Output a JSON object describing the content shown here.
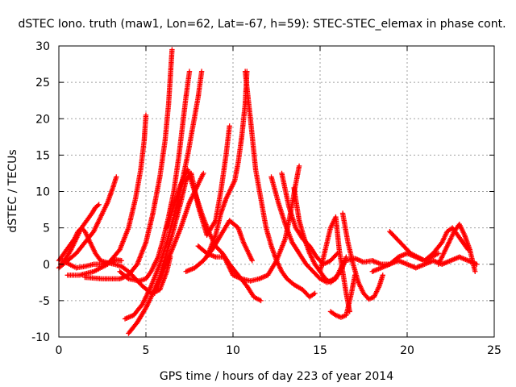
{
  "chart_data": {
    "type": "scatter",
    "title": "dSTEC Iono. truth (maw1, Lon=62, Lat=-67, h=59): STEC-STEC_elemax in phase cont.",
    "xlabel": "GPS time / hours of day 223 of year 2014",
    "ylabel": "dSTEC  / TECUs",
    "xlim": [
      0,
      25
    ],
    "ylim": [
      -10,
      30
    ],
    "xticks": [
      0,
      5,
      10,
      15,
      20,
      25
    ],
    "yticks": [
      -10,
      -5,
      0,
      5,
      10,
      15,
      20,
      25,
      30
    ],
    "grid": true,
    "marker": "plus",
    "color": "#ff0000",
    "series": [
      {
        "x": [
          0.0,
          0.3,
          0.6,
          0.9,
          1.1,
          1.3,
          1.5,
          1.8,
          2.1,
          2.4,
          2.8,
          3.2,
          3.6,
          4.0,
          4.4,
          4.8,
          5.3,
          5.8,
          6.2,
          6.4
        ],
        "y": [
          0.5,
          1.5,
          2.5,
          3.5,
          4.5,
          5.0,
          4.5,
          3.0,
          1.5,
          0.5,
          0.2,
          0.0,
          -0.3,
          -1.0,
          -2.0,
          -3.0,
          -4.0,
          -3.5,
          -1.0,
          1.0
        ]
      },
      {
        "x": [
          0.1,
          0.4,
          0.7,
          1.0,
          1.3,
          1.6,
          1.9,
          2.1,
          2.3
        ],
        "y": [
          0.0,
          0.8,
          2.0,
          3.5,
          5.0,
          6.0,
          7.0,
          7.8,
          8.2
        ]
      },
      {
        "x": [
          0.0,
          0.5,
          1.0,
          1.5,
          2.0,
          2.4,
          2.8,
          3.1,
          3.3
        ],
        "y": [
          -0.5,
          0.5,
          1.5,
          3.0,
          4.5,
          6.5,
          8.5,
          10.5,
          12.0
        ]
      },
      {
        "x": [
          0.5,
          1.2,
          2.0,
          2.8,
          3.5,
          4.0,
          4.4,
          4.7,
          4.9,
          5.0
        ],
        "y": [
          -1.5,
          -1.5,
          -1.0,
          0.0,
          2.0,
          5.0,
          9.0,
          13.0,
          17.0,
          20.5
        ]
      },
      {
        "x": [
          0.2,
          0.6,
          1.0,
          1.5,
          2.0,
          2.5,
          3.0,
          3.3,
          3.6
        ],
        "y": [
          0.5,
          0.0,
          -0.5,
          -0.3,
          0.0,
          0.0,
          0.3,
          0.6,
          0.5
        ]
      },
      {
        "x": [
          1.5,
          2.5,
          3.5,
          4.0,
          4.5,
          5.0,
          5.4,
          5.8,
          6.1,
          6.3,
          6.5
        ],
        "y": [
          -1.8,
          -2.0,
          -2.0,
          -1.5,
          0.0,
          3.0,
          7.0,
          12.0,
          17.0,
          22.0,
          29.5
        ]
      },
      {
        "x": [
          3.5,
          4.0,
          4.6,
          5.0,
          5.3,
          5.7,
          6.0,
          6.3,
          6.6,
          6.9,
          7.1,
          7.3,
          7.5
        ],
        "y": [
          -1.0,
          -2.0,
          -2.3,
          -2.0,
          -1.0,
          1.0,
          3.5,
          6.5,
          10.0,
          15.0,
          19.0,
          23.0,
          26.5
        ]
      },
      {
        "x": [
          3.8,
          4.3,
          4.8,
          5.3,
          5.8,
          6.2,
          6.6,
          7.0,
          7.4,
          7.7,
          8.0,
          8.2
        ],
        "y": [
          -7.5,
          -7.0,
          -5.5,
          -3.0,
          0.0,
          3.0,
          6.5,
          10.5,
          15.0,
          19.0,
          23.0,
          26.5
        ]
      },
      {
        "x": [
          4.0,
          4.5,
          5.0,
          5.5,
          6.0,
          6.5,
          7.0,
          7.5,
          8.0,
          8.3
        ],
        "y": [
          -9.5,
          -8.0,
          -6.0,
          -3.5,
          -1.0,
          2.0,
          5.0,
          8.5,
          11.0,
          12.5
        ]
      },
      {
        "x": [
          5.5,
          6.0,
          6.5,
          7.0,
          7.3,
          7.6,
          8.0,
          8.5,
          9.0,
          9.3,
          9.6,
          9.8
        ],
        "y": [
          -4.0,
          0.0,
          4.0,
          8.5,
          11.5,
          12.5,
          8.0,
          4.0,
          6.0,
          10.0,
          15.0,
          19.0
        ]
      },
      {
        "x": [
          6.2,
          6.6,
          7.0,
          7.4,
          7.8,
          8.2,
          8.6,
          9.0,
          9.4,
          9.8,
          10.3,
          10.8,
          11.2,
          11.6
        ],
        "y": [
          5.0,
          8.0,
          11.0,
          13.0,
          10.0,
          7.0,
          4.5,
          2.5,
          1.5,
          0.0,
          -1.5,
          -3.0,
          -4.5,
          -5.0
        ]
      },
      {
        "x": [
          7.3,
          7.8,
          8.3,
          8.8,
          9.3,
          9.8,
          10.3,
          10.6,
          10.9,
          11.1
        ],
        "y": [
          -1.0,
          -0.5,
          0.5,
          2.0,
          4.0,
          6.0,
          5.0,
          3.0,
          1.5,
          0.5
        ]
      },
      {
        "x": [
          8.0,
          8.5,
          9.0,
          9.5,
          10.0,
          10.5,
          11.0,
          11.5,
          12.0,
          12.5,
          13.0,
          13.3,
          13.6,
          13.8
        ],
        "y": [
          2.5,
          1.5,
          1.0,
          1.0,
          -1.5,
          -2.0,
          -2.3,
          -2.0,
          -1.5,
          0.5,
          3.5,
          7.0,
          11.0,
          13.5
        ]
      },
      {
        "x": [
          8.5,
          9.0,
          9.3,
          9.6,
          9.9,
          10.1,
          10.3,
          10.5,
          10.7,
          10.8
        ],
        "y": [
          1.0,
          4.0,
          7.0,
          9.0,
          10.5,
          11.5,
          14.0,
          17.5,
          22.0,
          26.5
        ]
      },
      {
        "x": [
          10.7,
          11.0,
          11.3,
          11.6,
          11.9,
          12.2,
          12.5,
          12.8,
          13.1,
          13.5,
          14.0,
          14.4,
          14.7
        ],
        "y": [
          26.5,
          20.0,
          13.0,
          9.0,
          5.0,
          2.5,
          0.5,
          -1.0,
          -2.0,
          -2.8,
          -3.5,
          -4.5,
          -4.0
        ]
      },
      {
        "x": [
          12.2,
          12.6,
          13.0,
          13.4,
          13.8,
          14.2,
          14.6,
          15.0,
          15.4,
          15.8,
          16.2,
          16.5
        ],
        "y": [
          12.0,
          8.5,
          5.5,
          3.0,
          1.5,
          0.0,
          -1.0,
          -2.0,
          -2.5,
          -2.0,
          -1.0,
          1.0
        ]
      },
      {
        "x": [
          12.8,
          13.2,
          13.6,
          14.0,
          14.4,
          14.8,
          15.2,
          15.6,
          16.0
        ],
        "y": [
          12.5,
          8.0,
          5.0,
          3.5,
          2.5,
          1.0,
          0.0,
          0.5,
          1.5
        ]
      },
      {
        "x": [
          13.5,
          13.8,
          14.1,
          14.4,
          14.7,
          15.0,
          15.3,
          15.6,
          15.9,
          16.2,
          16.4
        ],
        "y": [
          10.5,
          6.0,
          3.5,
          1.5,
          0.0,
          -1.0,
          -2.0,
          -2.5,
          -2.0,
          -0.5,
          0.5
        ]
      },
      {
        "x": [
          15.0,
          15.3,
          15.6,
          15.9,
          16.1,
          16.3,
          16.5,
          16.7
        ],
        "y": [
          -1.0,
          2.0,
          5.0,
          6.5,
          2.0,
          -1.0,
          -4.0,
          -6.5
        ]
      },
      {
        "x": [
          15.6,
          15.9,
          16.2,
          16.5,
          16.8,
          17.0
        ],
        "y": [
          -6.5,
          -7.0,
          -7.3,
          -7.0,
          -4.0,
          -1.5
        ]
      },
      {
        "x": [
          16.3,
          16.6,
          16.9,
          17.2,
          17.5,
          17.8,
          18.1,
          18.4,
          18.6
        ],
        "y": [
          7.0,
          3.0,
          0.0,
          -2.5,
          -4.0,
          -4.8,
          -4.5,
          -3.0,
          -1.5
        ]
      },
      {
        "x": [
          16.5,
          17.0,
          17.5,
          18.0,
          18.5,
          19.0,
          19.5,
          20.0,
          20.5,
          21.0,
          21.5,
          22.0,
          22.5,
          23.0,
          23.5,
          24.0
        ],
        "y": [
          0.5,
          0.8,
          0.3,
          0.5,
          0.0,
          0.0,
          0.5,
          0.0,
          -0.5,
          0.0,
          0.5,
          0.0,
          0.5,
          1.0,
          0.5,
          0.0
        ]
      },
      {
        "x": [
          18.0,
          18.5,
          19.0,
          19.5,
          20.0,
          20.5,
          21.0,
          21.5,
          22.0,
          22.3,
          22.6,
          22.9,
          23.2,
          23.5
        ],
        "y": [
          -1.0,
          -0.5,
          0.0,
          1.0,
          1.5,
          1.0,
          0.5,
          1.5,
          3.0,
          4.5,
          5.0,
          4.0,
          3.0,
          2.0
        ]
      },
      {
        "x": [
          19.0,
          19.4,
          19.8,
          20.2,
          20.6,
          21.0,
          21.4,
          21.8
        ],
        "y": [
          4.5,
          3.5,
          2.5,
          1.5,
          1.0,
          0.5,
          1.0,
          1.5
        ]
      },
      {
        "x": [
          21.8,
          22.1,
          22.4,
          22.7,
          23.0,
          23.3,
          23.6,
          23.9
        ],
        "y": [
          0.0,
          1.5,
          3.0,
          4.5,
          5.5,
          4.0,
          2.0,
          -1.0
        ]
      }
    ]
  }
}
